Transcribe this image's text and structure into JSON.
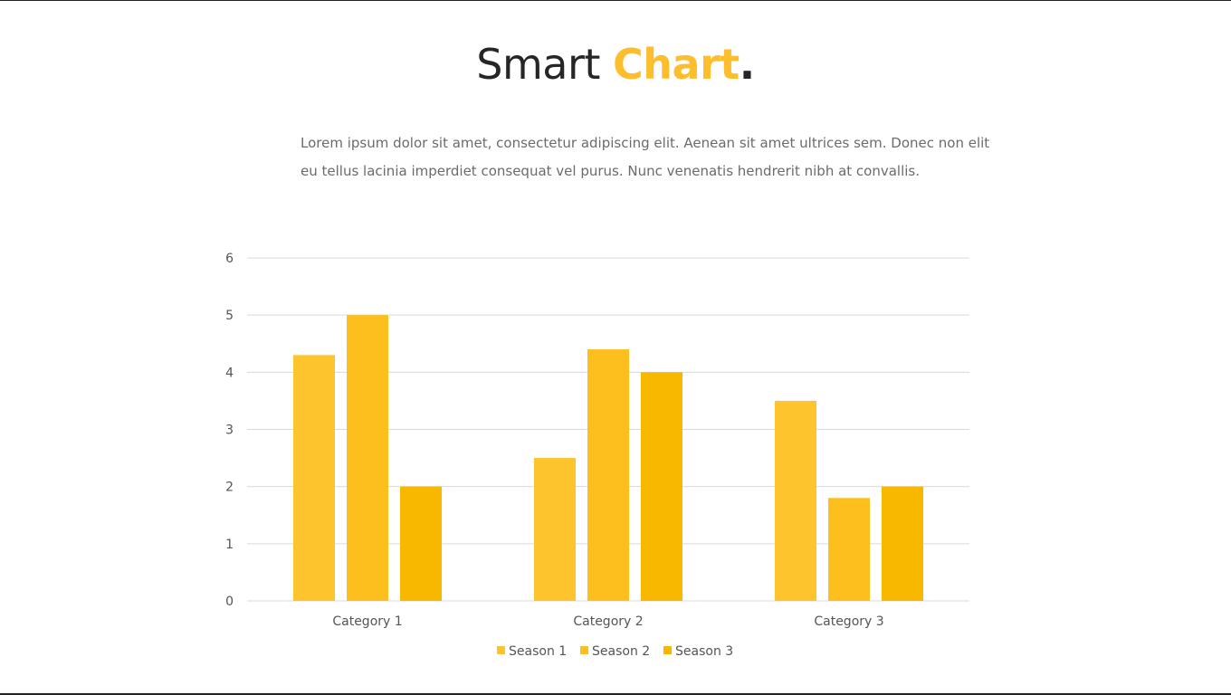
{
  "slide": {
    "title_main": "Smart ",
    "title_accent": "Chart",
    "title_dot": ".",
    "description_line1": "Lorem ipsum dolor sit amet, consectetur adipiscing elit. Aenean sit amet ultrices sem. Donec non elit",
    "description_line2": "eu tellus lacinia imperdiet consequat vel purus. Nunc venenatis hendrerit nibh at convallis."
  },
  "colors": {
    "accent": "#FDBE2E",
    "series": [
      "#FEC42E",
      "#FDBF1D",
      "#F9B800"
    ],
    "grid": "#d9d9d9",
    "text": "#555555"
  },
  "chart_data": {
    "type": "bar",
    "title": "",
    "xlabel": "",
    "ylabel": "",
    "categories": [
      "Category 1",
      "Category 2",
      "Category 3"
    ],
    "series": [
      {
        "name": "Season 1",
        "values": [
          4.3,
          2.5,
          3.5
        ]
      },
      {
        "name": "Season 2",
        "values": [
          5.0,
          4.4,
          1.8
        ]
      },
      {
        "name": "Season 3",
        "values": [
          2.0,
          4.0,
          2.0
        ]
      }
    ],
    "ylim": [
      0,
      6
    ],
    "yticks": [
      0,
      1,
      2,
      3,
      4,
      5,
      6
    ],
    "grid": true,
    "legend": "bottom"
  }
}
